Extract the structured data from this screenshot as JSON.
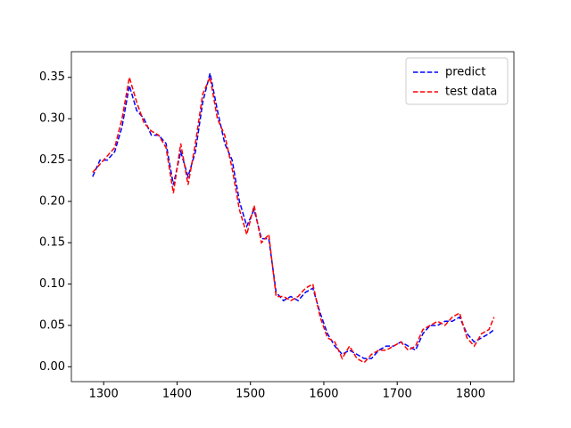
{
  "chart_data": {
    "type": "line",
    "x": [
      1285,
      1295,
      1305,
      1315,
      1325,
      1335,
      1345,
      1355,
      1365,
      1375,
      1385,
      1395,
      1405,
      1415,
      1425,
      1435,
      1445,
      1455,
      1465,
      1475,
      1485,
      1495,
      1505,
      1515,
      1525,
      1535,
      1545,
      1555,
      1565,
      1575,
      1585,
      1595,
      1605,
      1615,
      1625,
      1635,
      1645,
      1655,
      1665,
      1675,
      1685,
      1695,
      1705,
      1715,
      1725,
      1735,
      1745,
      1755,
      1765,
      1775,
      1785,
      1795,
      1805,
      1815,
      1825,
      1832
    ],
    "series": [
      {
        "name": "predict",
        "color": "#0000ff",
        "values": [
          0.23,
          0.25,
          0.25,
          0.26,
          0.29,
          0.34,
          0.31,
          0.3,
          0.28,
          0.28,
          0.27,
          0.22,
          0.26,
          0.23,
          0.26,
          0.32,
          0.355,
          0.31,
          0.27,
          0.25,
          0.2,
          0.17,
          0.19,
          0.155,
          0.155,
          0.09,
          0.08,
          0.085,
          0.08,
          0.09,
          0.095,
          0.065,
          0.04,
          0.025,
          0.015,
          0.02,
          0.015,
          0.01,
          0.01,
          0.02,
          0.025,
          0.025,
          0.03,
          0.025,
          0.02,
          0.04,
          0.05,
          0.05,
          0.055,
          0.055,
          0.06,
          0.04,
          0.03,
          0.035,
          0.04,
          0.045
        ]
      },
      {
        "name": "test data",
        "color": "#ff0000",
        "values": [
          0.235,
          0.245,
          0.255,
          0.265,
          0.3,
          0.35,
          0.32,
          0.295,
          0.285,
          0.28,
          0.265,
          0.21,
          0.27,
          0.22,
          0.27,
          0.33,
          0.35,
          0.3,
          0.28,
          0.24,
          0.19,
          0.16,
          0.195,
          0.15,
          0.16,
          0.085,
          0.085,
          0.08,
          0.085,
          0.095,
          0.1,
          0.06,
          0.035,
          0.03,
          0.01,
          0.025,
          0.01,
          0.005,
          0.015,
          0.02,
          0.02,
          0.025,
          0.03,
          0.02,
          0.025,
          0.045,
          0.05,
          0.055,
          0.05,
          0.06,
          0.065,
          0.035,
          0.025,
          0.04,
          0.045,
          0.06
        ]
      }
    ],
    "xlim": [
      1256,
      1859
    ],
    "ylim": [
      -0.018,
      0.381
    ],
    "xticks": [
      1300,
      1400,
      1500,
      1600,
      1700,
      1800
    ],
    "yticks": [
      {
        "value": 0,
        "label": "0.00"
      },
      {
        "value": 0.05,
        "label": "0.05"
      },
      {
        "value": 0.1,
        "label": "0.10"
      },
      {
        "value": 0.15,
        "label": "0.15"
      },
      {
        "value": 0.2,
        "label": "0.20"
      },
      {
        "value": 0.25,
        "label": "0.25"
      },
      {
        "value": 0.3,
        "label": "0.30"
      },
      {
        "value": 0.35,
        "label": "0.35"
      }
    ],
    "legend": "upper right"
  }
}
